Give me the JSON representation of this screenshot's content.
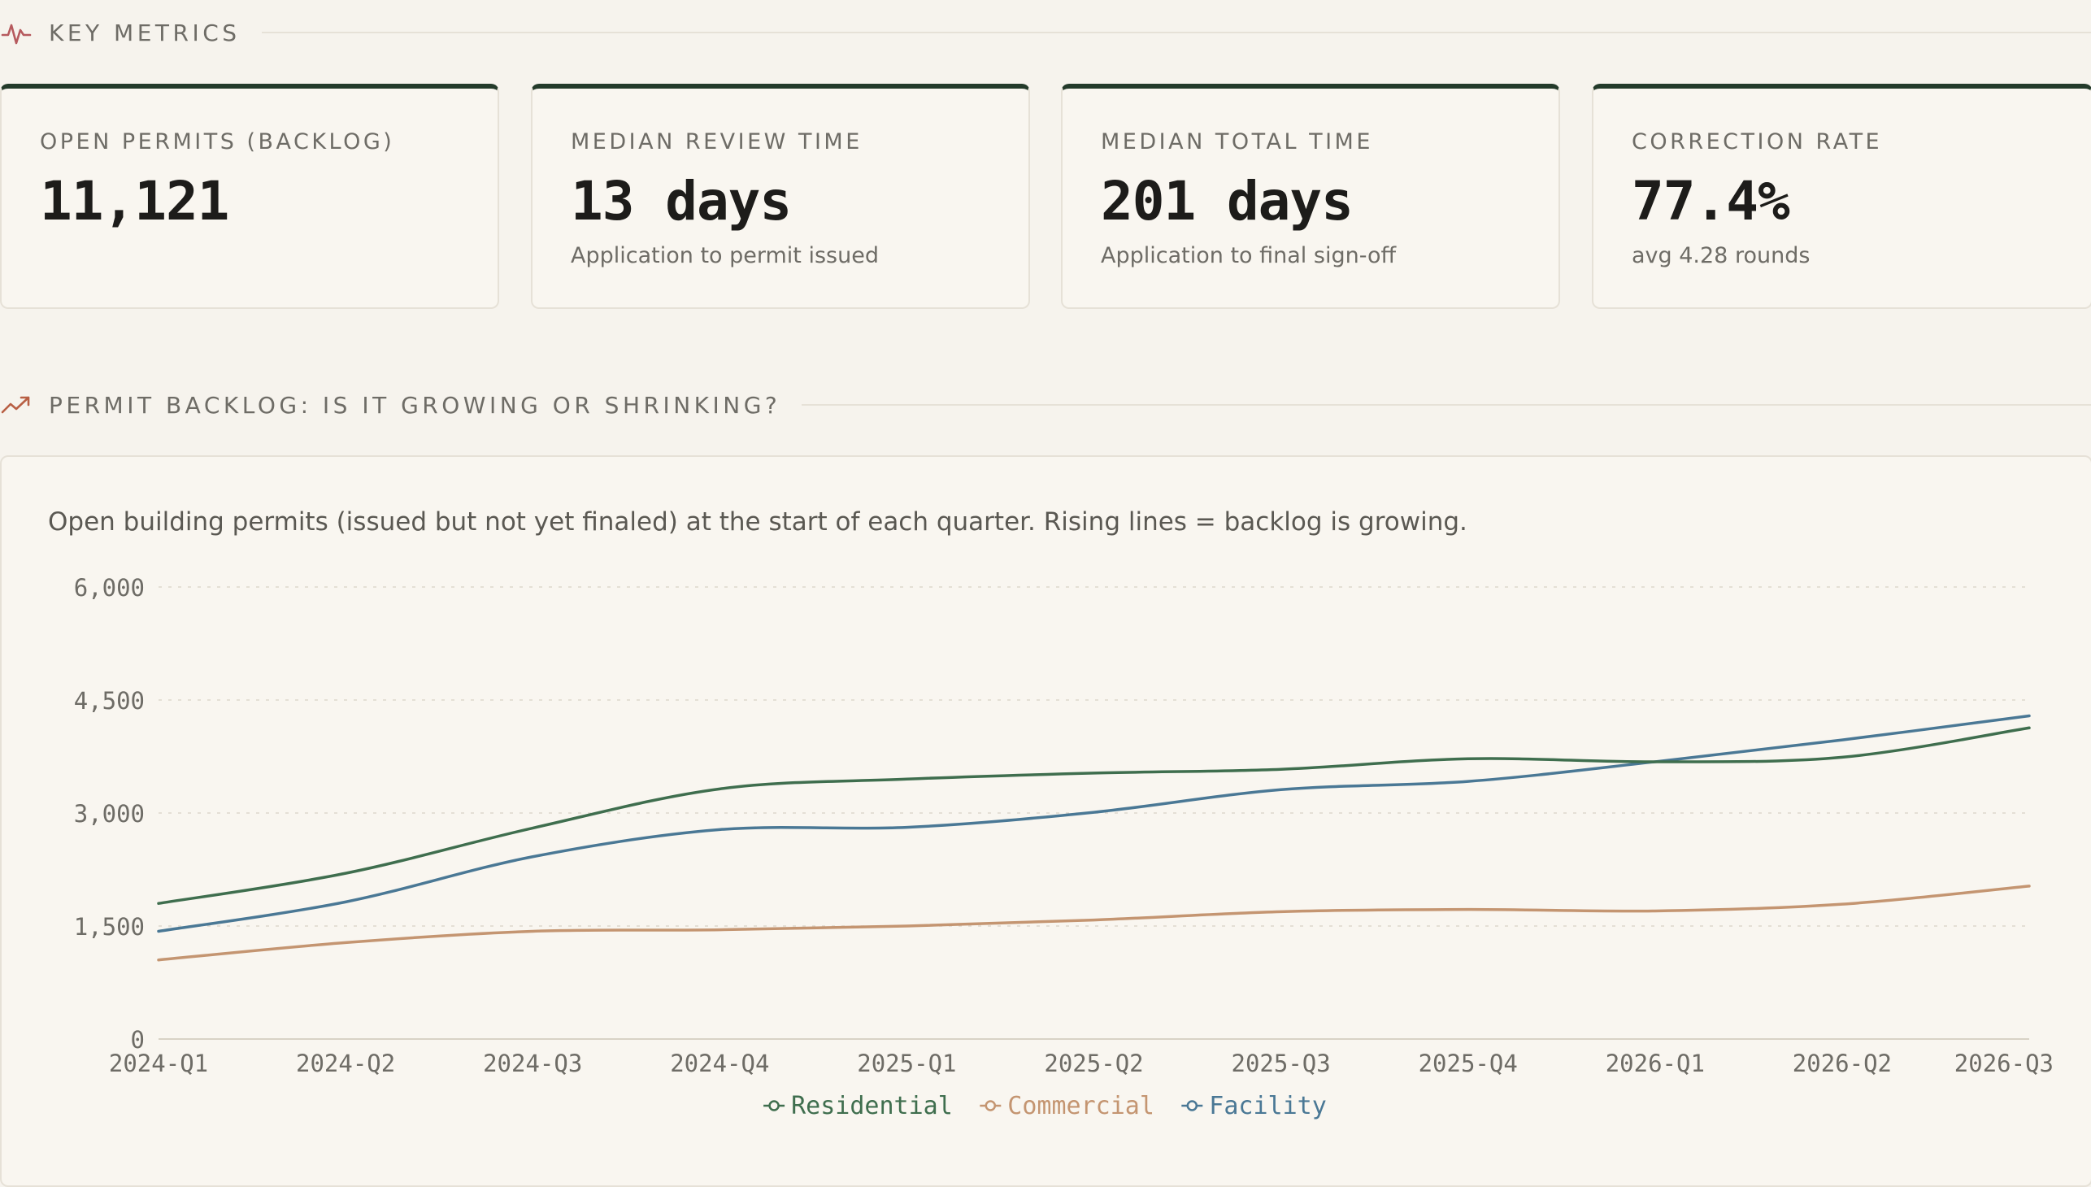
{
  "key_metrics": {
    "heading": "KEY METRICS",
    "icon": "pulse-icon",
    "cards": [
      {
        "title": "OPEN PERMITS (BACKLOG)",
        "value": "11,121",
        "subtitle": ""
      },
      {
        "title": "MEDIAN REVIEW TIME",
        "value": "13 days",
        "subtitle": "Application to permit issued"
      },
      {
        "title": "MEDIAN TOTAL TIME",
        "value": "201 days",
        "subtitle": "Application to final sign-off"
      },
      {
        "title": "CORRECTION RATE",
        "value": "77.4%",
        "subtitle": "avg 4.28 rounds"
      }
    ]
  },
  "backlog": {
    "heading": "PERMIT BACKLOG: IS IT GROWING OR SHRINKING?",
    "icon": "trending-up-icon",
    "description": "Open building permits (issued but not yet finaled) at the start of each quarter. Rising lines = backlog is growing."
  },
  "colors": {
    "residential": "#3f6e4e",
    "commercial": "#c49571",
    "facility": "#4a7895",
    "accent_dark": "#233a2a"
  },
  "chart_data": {
    "type": "line",
    "x": [
      "2024-Q1",
      "2024-Q2",
      "2024-Q3",
      "2024-Q4",
      "2025-Q1",
      "2025-Q2",
      "2025-Q3",
      "2025-Q4",
      "2026-Q1",
      "2026-Q2",
      "2026-Q3"
    ],
    "y_ticks": [
      "0",
      "1,500",
      "3,000",
      "4,500",
      "6,000"
    ],
    "ylim": [
      0,
      6000
    ],
    "grid": true,
    "legend_position": "bottom-center",
    "series": [
      {
        "name": "Residential",
        "values": [
          1800,
          2200,
          2800,
          3320,
          3450,
          3530,
          3580,
          3720,
          3680,
          3740,
          4130
        ]
      },
      {
        "name": "Commercial",
        "values": [
          1050,
          1280,
          1430,
          1450,
          1500,
          1580,
          1690,
          1720,
          1700,
          1790,
          2030
        ]
      },
      {
        "name": "Facility",
        "values": [
          1430,
          1820,
          2420,
          2780,
          2810,
          3010,
          3310,
          3420,
          3680,
          3970,
          4290
        ]
      }
    ]
  }
}
